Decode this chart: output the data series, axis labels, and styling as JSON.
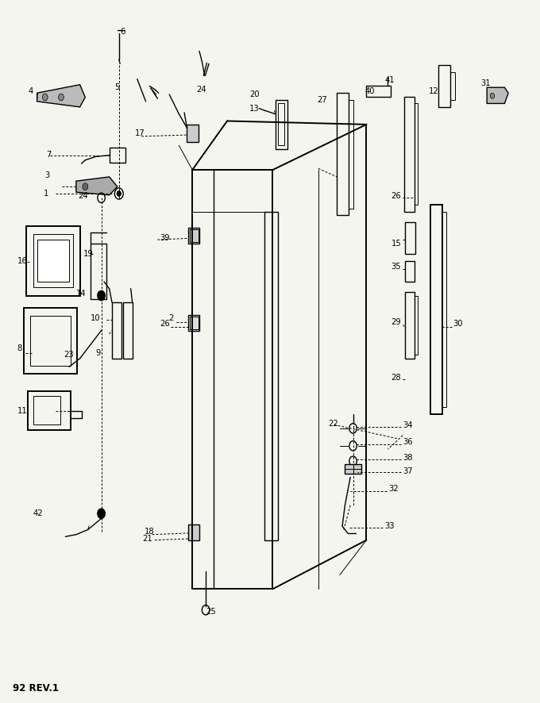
{
  "footer_text": "92 REV.1",
  "background_color": "#f5f5f0",
  "figsize": [
    6.8,
    8.86
  ],
  "dpi": 100
}
